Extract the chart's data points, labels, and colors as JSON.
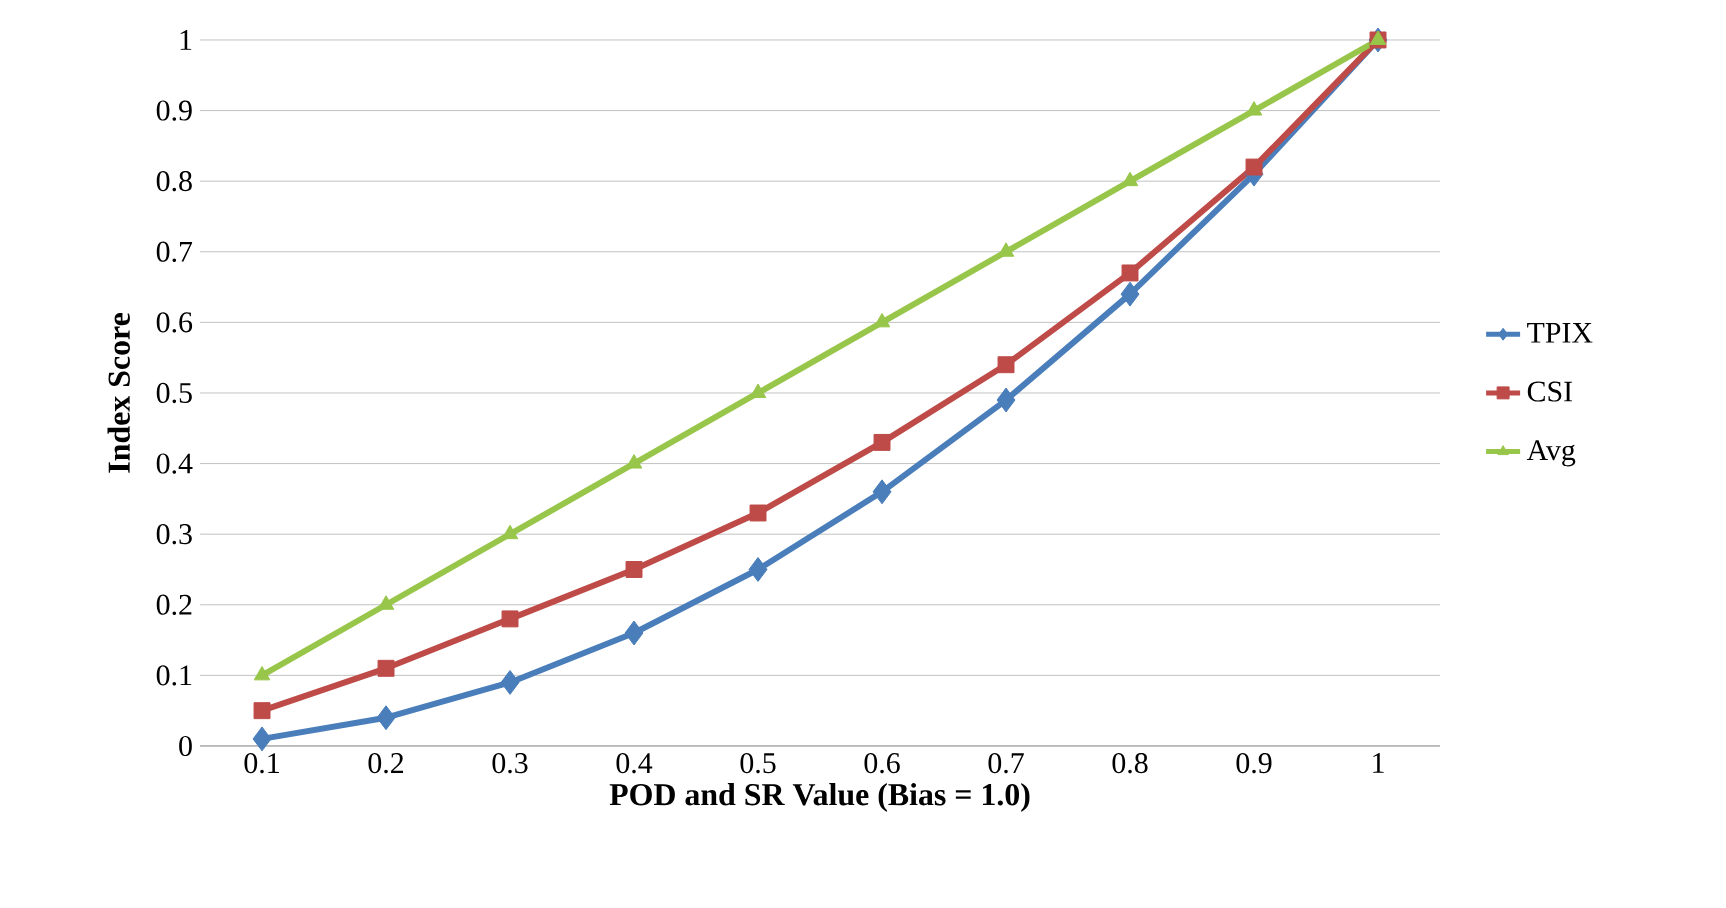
{
  "chart_data": {
    "type": "line",
    "xlabel": "POD and SR Value (Bias = 1.0)",
    "ylabel": "Index Score",
    "categories": [
      "0.1",
      "0.2",
      "0.3",
      "0.4",
      "0.5",
      "0.6",
      "0.7",
      "0.8",
      "0.9",
      "1"
    ],
    "series": [
      {
        "name": "TPIX",
        "color": "#4a7ebb",
        "marker": "diamond",
        "values": [
          0.01,
          0.04,
          0.09,
          0.16,
          0.25,
          0.36,
          0.49,
          0.64,
          0.81,
          1.0
        ]
      },
      {
        "name": "CSI",
        "color": "#be4b48",
        "marker": "square",
        "values": [
          0.05,
          0.11,
          0.18,
          0.25,
          0.33,
          0.43,
          0.54,
          0.67,
          0.82,
          1.0
        ]
      },
      {
        "name": "Avg",
        "color": "#98c64a",
        "marker": "triangle",
        "values": [
          0.1,
          0.2,
          0.3,
          0.4,
          0.5,
          0.6,
          0.7,
          0.8,
          0.9,
          1.0
        ]
      }
    ],
    "ylim": [
      0,
      1
    ],
    "yticks": [
      0,
      0.1,
      0.2,
      0.3,
      0.4,
      0.5,
      0.6,
      0.7,
      0.8,
      0.9,
      1
    ],
    "grid": "y",
    "legend": "right",
    "line_style": "solid"
  }
}
